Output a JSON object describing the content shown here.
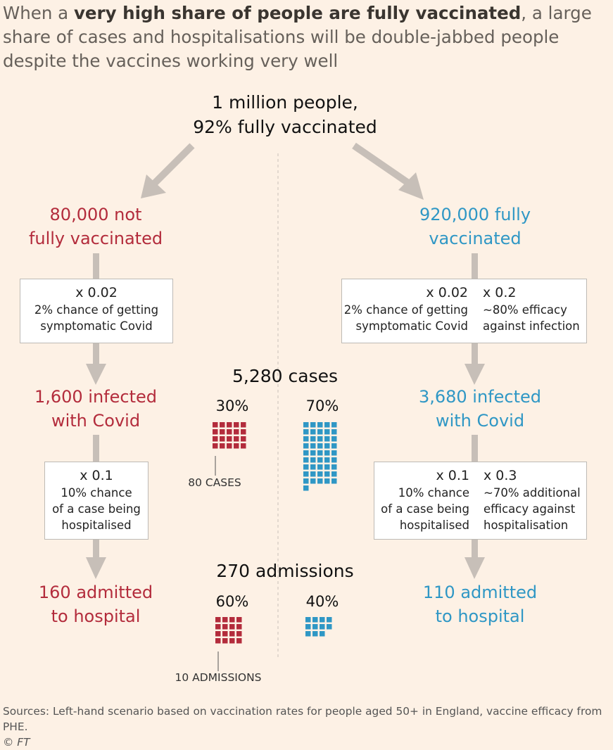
{
  "title": {
    "part1": "When a ",
    "bold": "very high share of people are fully vaccinated",
    "part2": ", a large share of cases and hospitalisations will be double-jabbed people despite the vaccines working very well"
  },
  "root": {
    "line1": "1 million people,",
    "line2": "92% fully vaccinated"
  },
  "left": {
    "group": {
      "line1": "80,000 not",
      "line2": "fully vaccinated"
    },
    "box1": {
      "mult": "x 0.02",
      "line1": "2% chance of getting",
      "line2": "symptomatic Covid"
    },
    "infected": {
      "line1": "1,600 infected",
      "line2": "with Covid"
    },
    "box2": {
      "mult": "x 0.1",
      "line1": "10% chance",
      "line2": "of a case being",
      "line3": "hospitalised"
    },
    "admitted": {
      "line1": "160 admitted",
      "line2": "to hospital"
    }
  },
  "right": {
    "group": {
      "line1": "920,000 fully",
      "line2": "vaccinated"
    },
    "box1": {
      "col1": {
        "mult": "x 0.02",
        "line1": "2% chance of getting",
        "line2": "symptomatic Covid"
      },
      "col2": {
        "mult": "x 0.2",
        "line1": "~80% efficacy",
        "line2": "against infection"
      }
    },
    "infected": {
      "line1": "3,680 infected",
      "line2": "with Covid"
    },
    "box2": {
      "col1": {
        "mult": "x 0.1",
        "line1": "10% chance",
        "line2": "of a case being",
        "line3": "hospitalised"
      },
      "col2": {
        "mult": "x 0.3",
        "line1": "~70% additional",
        "line2": "efficacy against",
        "line3": "hospitalisation"
      }
    },
    "admitted": {
      "line1": "110 admitted",
      "line2": "to hospital"
    }
  },
  "cases": {
    "heading": "5,280 cases",
    "left_pct": "30%",
    "right_pct": "70%",
    "unit_label": "80 CASES",
    "left_squares": 20,
    "right_squares": 46
  },
  "admissions": {
    "heading": "270 admissions",
    "left_pct": "60%",
    "right_pct": "40%",
    "unit_label": "10 ADMISSIONS",
    "left_squares": 16,
    "right_squares": 11
  },
  "colors": {
    "unvaccinated": "#b32c3c",
    "vaccinated": "#2f97c5",
    "arrow": "#c7bfb8",
    "background": "#fdf1e5"
  },
  "sources": "Sources: Left-hand scenario based on vaccination rates for people aged 50+ in England, vaccine efficacy from PHE.",
  "credit": "© FT"
}
